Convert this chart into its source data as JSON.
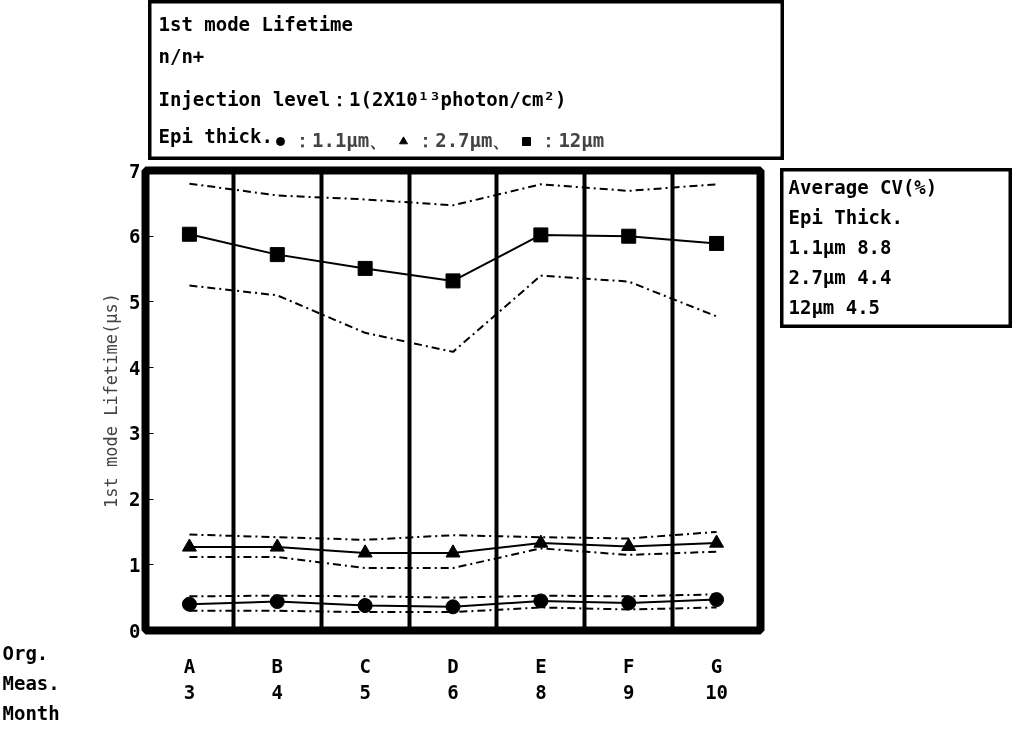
{
  "chart_data": {
    "type": "line",
    "title": "1st mode Lifetime",
    "subtitle": "n/n+",
    "ylabel": "1st mode Lifetime(μs)",
    "legend_title": "Epi thick.",
    "legend": "top",
    "grid": "x",
    "line_style": "solid",
    "categories": [
      "A\n3",
      "B\n4",
      "C\n5",
      "D\n6",
      "E\n8",
      "F\n9",
      "G\n10"
    ],
    "ylim": [
      0,
      7
    ],
    "yticks": [
      0,
      1,
      2,
      3,
      4,
      5,
      6,
      7
    ],
    "series": [
      {
        "name": "：1.1μm、",
        "marker": "circle",
        "color": "#000000",
        "values": [
          0.4,
          0.44,
          0.38,
          0.36,
          0.45,
          0.42,
          0.47
        ]
      },
      {
        "name": "：2.7μm、",
        "marker": "triangle",
        "color": "#000000",
        "values": [
          1.27,
          1.27,
          1.18,
          1.18,
          1.33,
          1.28,
          1.33
        ]
      },
      {
        "name": "：12μm",
        "marker": "square",
        "color": "#000000",
        "values": [
          6.03,
          5.72,
          5.51,
          5.32,
          6.02,
          6.0,
          5.89
        ]
      },
      {
        "marker": "none",
        "line_style": "dashed",
        "color": "#000000",
        "values": [
          0.52,
          0.53,
          0.52,
          0.5,
          0.53,
          0.52,
          0.55
        ]
      },
      {
        "marker": "none",
        "line_style": "dashed",
        "color": "#000000",
        "values": [
          0.3,
          0.3,
          0.28,
          0.28,
          0.35,
          0.32,
          0.35
        ]
      },
      {
        "marker": "none",
        "line_style": "dashed",
        "color": "#000000",
        "values": [
          1.46,
          1.42,
          1.38,
          1.45,
          1.42,
          1.4,
          1.5
        ]
      },
      {
        "marker": "none",
        "line_style": "dashed",
        "color": "#000000",
        "values": [
          1.12,
          1.12,
          0.95,
          0.95,
          1.25,
          1.15,
          1.2
        ]
      },
      {
        "marker": "none",
        "line_style": "dashed",
        "color": "#000000",
        "values": [
          6.8,
          6.62,
          6.56,
          6.47,
          6.79,
          6.69,
          6.79
        ]
      },
      {
        "marker": "none",
        "line_style": "dashed",
        "color": "#000000",
        "values": [
          5.25,
          5.1,
          4.53,
          4.24,
          5.4,
          5.31,
          4.78
        ]
      }
    ],
    "annotations": [
      "Injection level：1(2X10¹³photon/cm²)",
      "Average CV(%)",
      "Epi Thick.",
      "1.1μm   8.8",
      "2.7μm   4.4",
      "12μm    4.5",
      "Org.",
      "Meas.",
      "Month"
    ]
  }
}
